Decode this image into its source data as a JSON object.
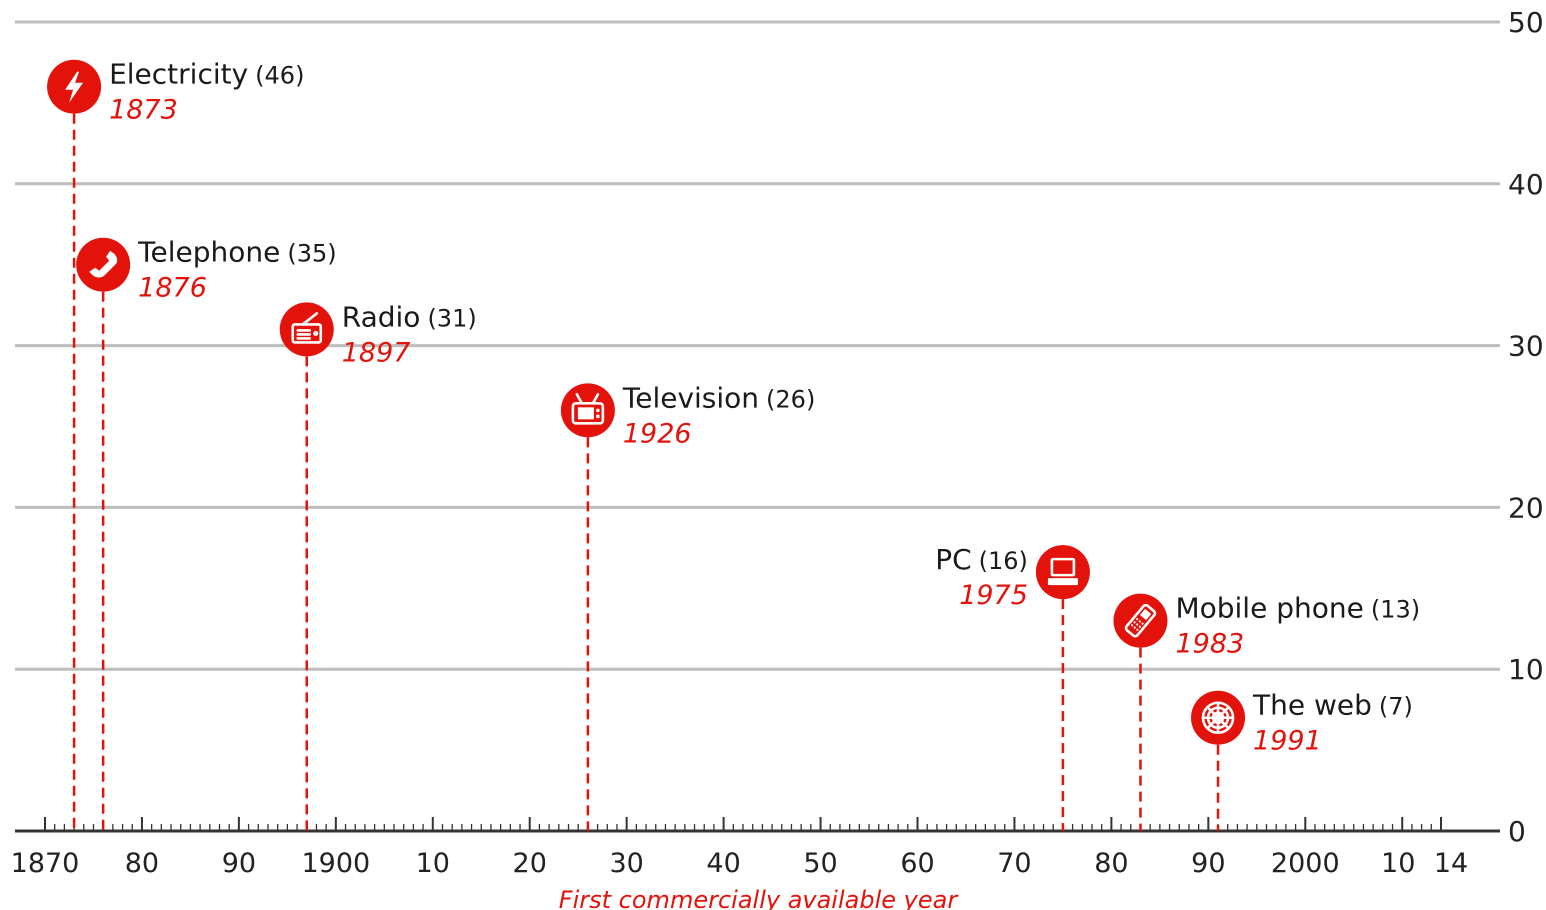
{
  "chart_data": {
    "type": "scatter",
    "xlabel": "First commercially available year",
    "ylabel": "",
    "x_range": [
      1870,
      2016
    ],
    "ylim": [
      0,
      50
    ],
    "y_ticks": [
      "0",
      "10",
      "20",
      "30",
      "40",
      "50"
    ],
    "x_ticks": [
      {
        "year": 1870,
        "label": "1870"
      },
      {
        "year": 1880,
        "label": "80"
      },
      {
        "year": 1890,
        "label": "90"
      },
      {
        "year": 1900,
        "label": "1900"
      },
      {
        "year": 1910,
        "label": "10"
      },
      {
        "year": 1920,
        "label": "20"
      },
      {
        "year": 1930,
        "label": "30"
      },
      {
        "year": 1940,
        "label": "40"
      },
      {
        "year": 1950,
        "label": "50"
      },
      {
        "year": 1960,
        "label": "60"
      },
      {
        "year": 1970,
        "label": "70"
      },
      {
        "year": 1980,
        "label": "80"
      },
      {
        "year": 1990,
        "label": "90"
      },
      {
        "year": 2000,
        "label": "2000"
      },
      {
        "year": 2010,
        "label": "10"
      },
      {
        "year": 2014,
        "label": "14"
      }
    ],
    "grid": true,
    "points": [
      {
        "name": "Electricity",
        "value": 46,
        "value_label": "(46)",
        "year": 1873,
        "year_label": "1873",
        "icon": "lightning-icon",
        "label_side": "right"
      },
      {
        "name": "Telephone",
        "value": 35,
        "value_label": "(35)",
        "year": 1876,
        "year_label": "1876",
        "icon": "telephone-icon",
        "label_side": "right"
      },
      {
        "name": "Radio",
        "value": 31,
        "value_label": "(31)",
        "year": 1897,
        "year_label": "1897",
        "icon": "radio-icon",
        "label_side": "right"
      },
      {
        "name": "Television",
        "value": 26,
        "value_label": "(26)",
        "year": 1926,
        "year_label": "1926",
        "icon": "television-icon",
        "label_side": "right"
      },
      {
        "name": "PC",
        "value": 16,
        "value_label": "(16)",
        "year": 1975,
        "year_label": "1975",
        "icon": "computer-icon",
        "label_side": "left"
      },
      {
        "name": "Mobile phone",
        "value": 13,
        "value_label": "(13)",
        "year": 1983,
        "year_label": "1983",
        "icon": "mobile-phone-icon",
        "label_side": "right"
      },
      {
        "name": "The web",
        "value": 7,
        "value_label": "(7)",
        "year": 1991,
        "year_label": "1991",
        "icon": "web-icon",
        "label_side": "right"
      }
    ]
  },
  "colors": {
    "accent": "#e3120b",
    "grid": "#bdbdbd",
    "axis": "#333333",
    "text": "#1a1a1a"
  }
}
